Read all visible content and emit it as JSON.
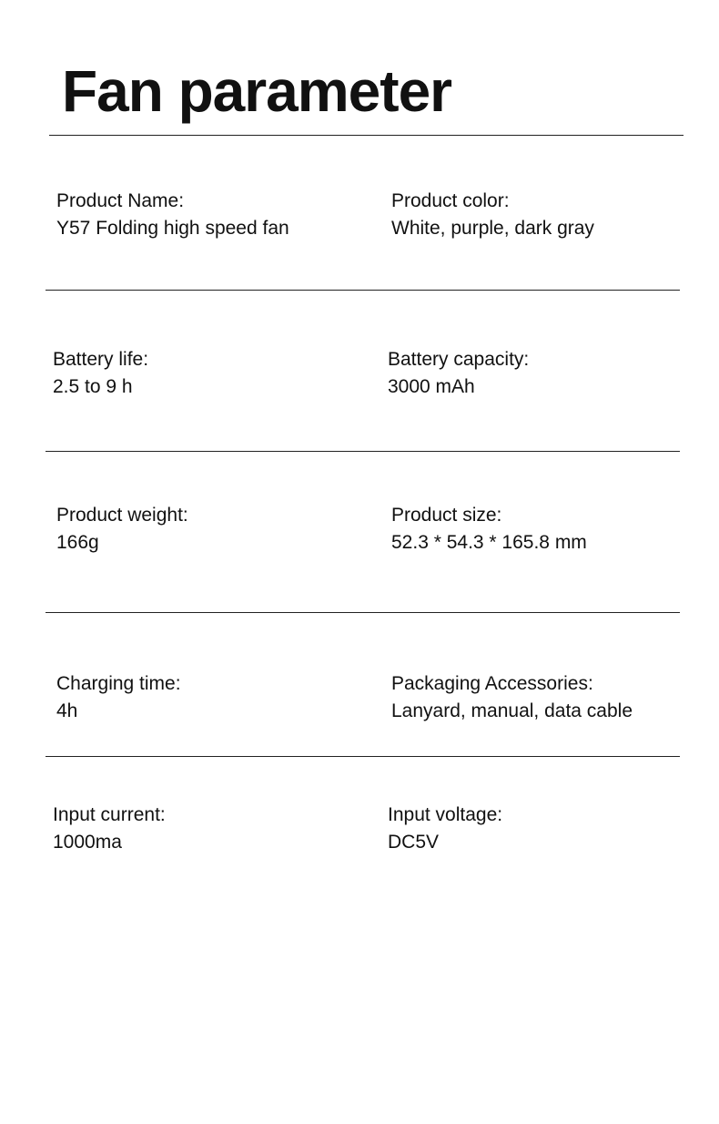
{
  "title": "Fan parameter",
  "rows": [
    [
      {
        "label": "Product Name:",
        "value": "Y57 Folding high speed fan"
      },
      {
        "label": "Product color:",
        "value": "White, purple, dark gray"
      }
    ],
    [
      {
        "label": "Battery life:",
        "value": "2.5 to 9 h"
      },
      {
        "label": "Battery capacity:",
        "value": "3000 mAh"
      }
    ],
    [
      {
        "label": "Product weight:",
        "value": "166g"
      },
      {
        "label": "Product size:",
        "value": "52.3 * 54.3 * 165.8 mm"
      }
    ],
    [
      {
        "label": "Charging time:",
        "value": "4h"
      },
      {
        "label": "Packaging Accessories:",
        "value": "Lanyard, manual, data cable"
      }
    ],
    [
      {
        "label": "Input current:",
        "value": "1000ma"
      },
      {
        "label": "Input voltage:",
        "value": "DC5V"
      }
    ]
  ]
}
